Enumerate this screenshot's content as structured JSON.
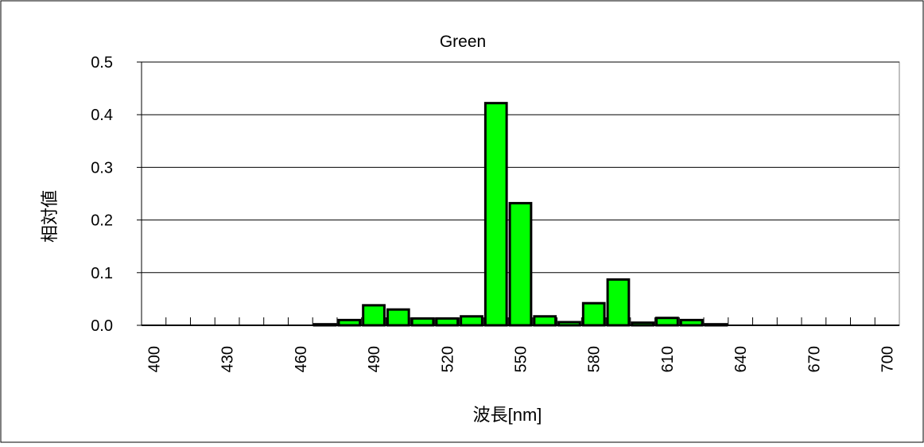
{
  "colors": {
    "bar_fill": "#00ff00",
    "bar_stroke": "#000000",
    "grid": "#000000",
    "background": "#ffffff",
    "plot_frame": "#808080"
  },
  "chart_data": {
    "type": "bar",
    "title": "Green",
    "xlabel": "波長[nm]",
    "ylabel": "相対値",
    "x": [
      400,
      410,
      420,
      430,
      440,
      450,
      460,
      470,
      480,
      490,
      500,
      510,
      520,
      530,
      540,
      550,
      560,
      570,
      580,
      590,
      600,
      610,
      620,
      630,
      640,
      650,
      660,
      670,
      680,
      690,
      700
    ],
    "values": [
      0,
      0,
      0,
      0,
      0,
      0,
      0,
      0.002,
      0.01,
      0.038,
      0.03,
      0.013,
      0.013,
      0.017,
      0.422,
      0.232,
      0.017,
      0.006,
      0.042,
      0.087,
      0.005,
      0.014,
      0.01,
      0.002,
      0,
      0,
      0,
      0,
      0,
      0,
      0
    ],
    "x_tick_labels": [
      "400",
      "430",
      "460",
      "490",
      "520",
      "550",
      "580",
      "610",
      "640",
      "670",
      "700"
    ],
    "y_tick_labels": [
      "0.0",
      "0.1",
      "0.2",
      "0.3",
      "0.4",
      "0.5"
    ],
    "ylim": [
      0,
      0.5
    ],
    "grid": "horizontal",
    "legend": "none"
  }
}
